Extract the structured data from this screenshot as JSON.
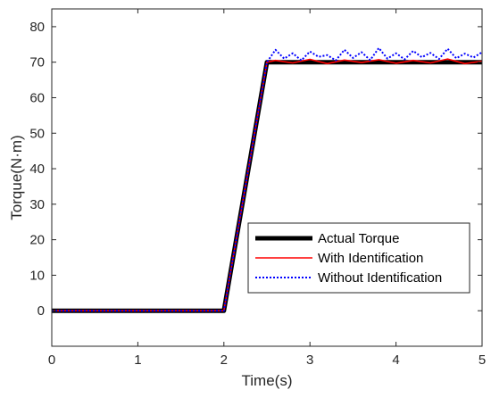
{
  "chart_data": {
    "type": "line",
    "title": "",
    "xlabel": "Time(s)",
    "ylabel": "Torque(N·m)",
    "xlim": [
      0,
      5
    ],
    "ylim": [
      -10,
      85
    ],
    "xticks": [
      0,
      1,
      2,
      3,
      4,
      5
    ],
    "yticks": [
      0,
      10,
      20,
      30,
      40,
      50,
      60,
      70,
      80
    ],
    "grid": false,
    "legend_position": "lower-right",
    "series": [
      {
        "name": "Actual Torque",
        "color": "#000000",
        "style": "solid-thick",
        "x": [
          0,
          2.0,
          2.5,
          5.0
        ],
        "y": [
          0,
          0,
          70,
          70
        ]
      },
      {
        "name": "With Identification",
        "color": "#ff0000",
        "style": "solid",
        "x": [
          0,
          2.0,
          2.5,
          2.6,
          2.8,
          3.0,
          3.2,
          3.4,
          3.6,
          3.8,
          4.0,
          4.2,
          4.4,
          4.6,
          4.8,
          5.0
        ],
        "y": [
          0,
          0,
          70,
          70.5,
          69.8,
          70.8,
          69.6,
          70.6,
          69.9,
          70.7,
          69.7,
          70.5,
          69.8,
          70.9,
          69.6,
          70.3
        ]
      },
      {
        "name": "Without Identification",
        "color": "#0000ff",
        "style": "dotted",
        "x": [
          0,
          2.0,
          2.5,
          2.6,
          2.7,
          2.8,
          2.9,
          3.0,
          3.1,
          3.2,
          3.3,
          3.4,
          3.5,
          3.6,
          3.7,
          3.8,
          3.9,
          4.0,
          4.1,
          4.2,
          4.3,
          4.4,
          4.5,
          4.6,
          4.7,
          4.8,
          4.9,
          5.0
        ],
        "y": [
          0,
          0,
          70,
          73.5,
          71,
          72.5,
          70.5,
          73,
          71.5,
          72,
          70.5,
          73.5,
          71.2,
          72.8,
          70.6,
          74,
          71,
          72.5,
          70.8,
          73.2,
          71.4,
          72.6,
          70.9,
          73.8,
          71.1,
          72.4,
          71.3,
          72.8
        ]
      }
    ]
  }
}
